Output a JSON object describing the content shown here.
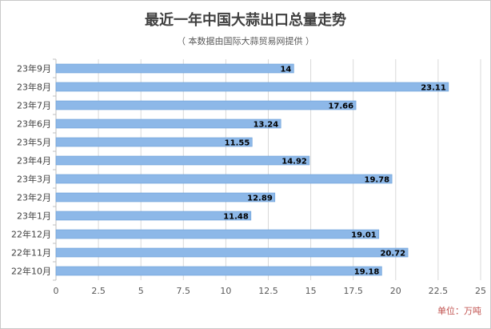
{
  "chart_data": {
    "type": "bar",
    "orientation": "horizontal",
    "title": "最近一年中国大蒜出口总量走势",
    "subtitle": "（ 本数据由国际大蒜贸易网提供 ）",
    "unit_label": "单位：万吨",
    "categories": [
      "23年9月",
      "23年8月",
      "23年7月",
      "23年6月",
      "23年5月",
      "23年4月",
      "23年3月",
      "23年2月",
      "23年1月",
      "22年12月",
      "22年11月",
      "22年10月"
    ],
    "values": [
      14,
      23.11,
      17.66,
      13.24,
      11.55,
      14.92,
      19.78,
      12.89,
      11.48,
      19.01,
      20.72,
      19.18
    ],
    "value_labels": [
      "14",
      "23.11",
      "17.66",
      "13.24",
      "11.55",
      "14.92",
      "19.78",
      "12.89",
      "11.48",
      "19.01",
      "20.72",
      "19.18"
    ],
    "xlim": [
      0,
      25
    ],
    "x_ticks": [
      0,
      2.5,
      5,
      7.5,
      10,
      12.5,
      15,
      17.5,
      20,
      22.5,
      25
    ],
    "x_tick_labels": [
      "0",
      "2.5",
      "5",
      "7.5",
      "10",
      "12.5",
      "15",
      "17.5",
      "20",
      "22.5",
      "25"
    ],
    "grid": true,
    "colors": {
      "bar": "#8db8e8",
      "bar_edge": "#6a9fd8",
      "grid": "#d9d9d9",
      "axis": "#bfbfbf",
      "text": "#404040",
      "unit": "#c0504d"
    }
  }
}
